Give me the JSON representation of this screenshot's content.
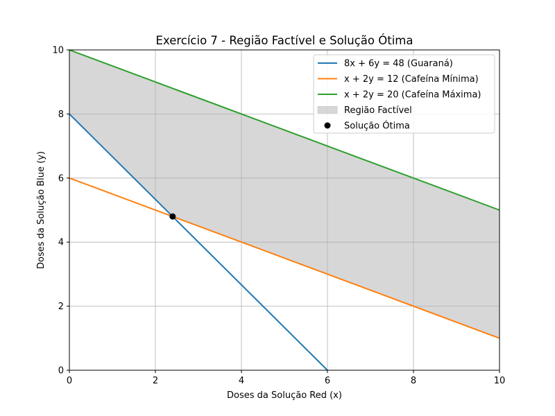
{
  "chart_data": {
    "type": "line",
    "title": "Exercício 7 - Região Factível e Solução Ótima",
    "xlabel": "Doses da Solução Red (x)",
    "ylabel": "Doses da Solução Blue (y)",
    "xlim": [
      0,
      10
    ],
    "ylim": [
      0,
      10
    ],
    "xticks": [
      0,
      2,
      4,
      6,
      8,
      10
    ],
    "yticks": [
      0,
      2,
      4,
      6,
      8,
      10
    ],
    "grid": true,
    "legend_position": "top-right",
    "series": [
      {
        "name": "8x + 6y = 48 (Guaraná)",
        "color": "#1f77b4",
        "x": [
          0,
          6
        ],
        "y": [
          8,
          0
        ]
      },
      {
        "name": "x + 2y = 12 (Cafeína Mínima)",
        "color": "#ff7f0e",
        "x": [
          0,
          10
        ],
        "y": [
          6,
          1
        ]
      },
      {
        "name": "x + 2y = 20 (Cafeína Máxima)",
        "color": "#2ca02c",
        "x": [
          0,
          10
        ],
        "y": [
          10,
          5
        ]
      }
    ],
    "feasible_region": {
      "name": "Região Factível",
      "color": "#d3d3d3",
      "vertices": [
        [
          0,
          8
        ],
        [
          2.4,
          4.8
        ],
        [
          10,
          1
        ],
        [
          10,
          5
        ],
        [
          0,
          10
        ]
      ]
    },
    "optimal_point": {
      "name": "Solução Ótima",
      "color": "#000000",
      "x": 2.4,
      "y": 4.8
    }
  }
}
